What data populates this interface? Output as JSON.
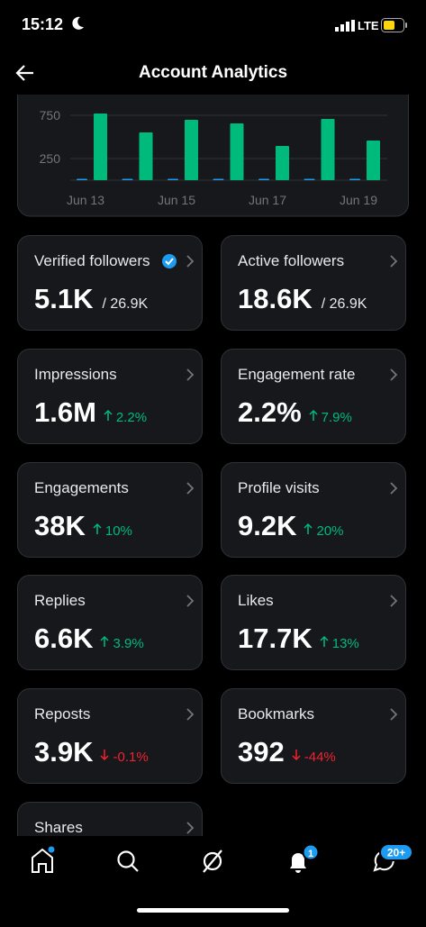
{
  "status_bar": {
    "time": "15:12",
    "network": "LTE"
  },
  "header": {
    "title": "Account Analytics"
  },
  "chart_data": {
    "type": "bar",
    "categories": [
      "Jun 13",
      null,
      "Jun 15",
      null,
      "Jun 17",
      null,
      "Jun 19"
    ],
    "series": [
      {
        "color": "#1d9bf0",
        "values": [
          15,
          15,
          15,
          15,
          15,
          15,
          15
        ]
      },
      {
        "color": "#00ba7c",
        "values": [
          771,
          552,
          698,
          656,
          396,
          708,
          458
        ]
      }
    ],
    "ylim": [
      0,
      875
    ],
    "yticks": [
      250,
      750
    ],
    "grid": true
  },
  "cards": [
    {
      "label": "Verified followers",
      "value": "5.1K",
      "total": "/ 26.9K",
      "verified": true
    },
    {
      "label": "Active followers",
      "value": "18.6K",
      "total": "/ 26.9K"
    },
    {
      "label": "Impressions",
      "value": "1.6M",
      "change": "2.2%",
      "trend": "up"
    },
    {
      "label": "Engagement rate",
      "value": "2.2%",
      "change": "7.9%",
      "trend": "up"
    },
    {
      "label": "Engagements",
      "value": "38K",
      "change": "10%",
      "trend": "up"
    },
    {
      "label": "Profile visits",
      "value": "9.2K",
      "change": "20%",
      "trend": "up"
    },
    {
      "label": "Replies",
      "value": "6.6K",
      "change": "3.9%",
      "trend": "up"
    },
    {
      "label": "Likes",
      "value": "17.7K",
      "change": "13%",
      "trend": "up"
    },
    {
      "label": "Reposts",
      "value": "3.9K",
      "change": "-0.1%",
      "trend": "down"
    },
    {
      "label": "Bookmarks",
      "value": "392",
      "change": "-44%",
      "trend": "down"
    },
    {
      "label": "Shares"
    }
  ],
  "nav": {
    "notification_badge": "1",
    "message_badge": "20+"
  }
}
